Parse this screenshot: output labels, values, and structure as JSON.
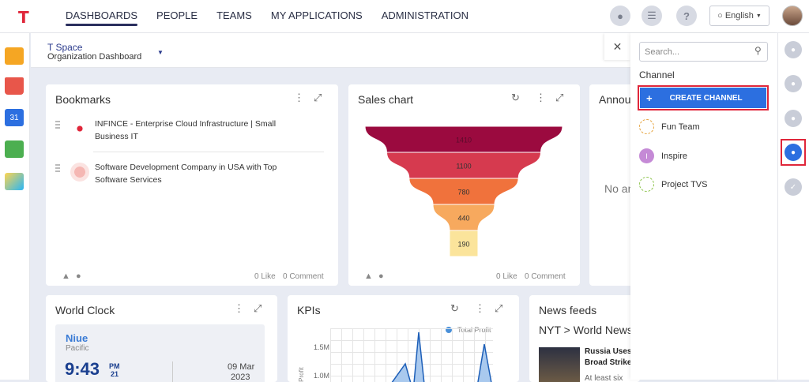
{
  "nav": {
    "items": [
      "DASHBOARDS",
      "PEOPLE",
      "TEAMS",
      "MY APPLICATIONS",
      "ADMINISTRATION"
    ],
    "active": 0
  },
  "topbar": {
    "language": "English",
    "icons": [
      "bell-icon",
      "notes-icon",
      "help-icon",
      "globe-icon"
    ]
  },
  "subheader": {
    "space": "T Space",
    "dashboard": "Organization Dashboard"
  },
  "bookmarks": {
    "title": "Bookmarks",
    "items": [
      {
        "text": "INFINCE - Enterprise Cloud Infrastructure | Small Business IT"
      },
      {
        "text": "Software Development Company in USA with Top Software Services"
      }
    ],
    "likes": "0 Like",
    "comments": "0 Comment"
  },
  "sales": {
    "title": "Sales chart",
    "likes": "0 Like",
    "comments": "0 Comment"
  },
  "chart_data": {
    "type": "funnel",
    "values": [
      1410,
      1100,
      780,
      440,
      190
    ],
    "colors": [
      "#9b0a3f",
      "#d63a4f",
      "#f0723c",
      "#f7a95e",
      "#fbe49b"
    ]
  },
  "announce": {
    "title": "Annou",
    "body": "No an"
  },
  "clock": {
    "title": "World Clock",
    "city": "Niue",
    "region": "Pacific",
    "time": "9:43",
    "ampm": "PM",
    "sec": "21",
    "date": "09 Mar",
    "year": "2023"
  },
  "kpis": {
    "title": "KPIs",
    "legend": "Total Profit",
    "ticks": [
      "1.5M",
      "1.0M"
    ],
    "ylabel": "Profit"
  },
  "news": {
    "title": "News feeds",
    "source": "NYT > World News",
    "headline1": "Russia Uses",
    "headline2": "Broad Strike",
    "snippet": "At least six"
  },
  "panel": {
    "search_placeholder": "Search...",
    "channel_label": "Channel",
    "create_label": "CREATE CHANNEL",
    "channels": [
      {
        "name": "Fun Team",
        "initial": ""
      },
      {
        "name": "Inspire",
        "initial": "I"
      },
      {
        "name": "Project TVS",
        "initial": ""
      }
    ]
  }
}
